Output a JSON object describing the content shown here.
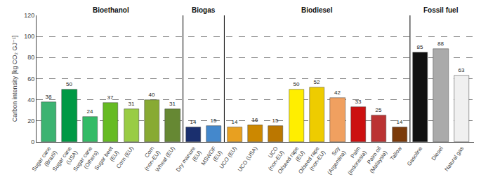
{
  "chart_data": {
    "type": "bar",
    "ylabel": "Carbon intensity [kg CO₂ GJ⁻¹]",
    "categories": [
      "Sugar cane\n(Brazil)",
      "Sugar cane\n(USA)",
      "Sugar cane\n(Others)",
      "Sugar beet\n(EU)",
      "Corn (EU)",
      "Corn\n(non-EU)",
      "Wheat (EU)",
      "Dry manure\n(EU)",
      "MSWOF\n(EU)",
      "UCO (EU)",
      "UCO (USA)",
      "UCO\n(non-EU)",
      "Oilseed rape\n(EU)",
      "Oilseed rape\n(non-EU)",
      "Soy\n(Argentina)",
      "Palm\n(Indonesia)",
      "Palm oil\n(Malaysia)",
      "Tallow",
      "Gasoline",
      "Diesel",
      "Natural gas"
    ],
    "values": [
      38,
      50,
      24,
      37,
      31,
      40,
      31,
      14,
      15,
      14,
      16,
      15,
      50,
      52,
      42,
      33,
      25,
      14,
      85,
      88,
      63
    ],
    "colors": [
      "#3cb371",
      "#009944",
      "#33bb66",
      "#66bb22",
      "#99cc44",
      "#88aa33",
      "#668833",
      "#1a2f6e",
      "#4488cc",
      "#e8a020",
      "#cc8800",
      "#bb7700",
      "#ffee00",
      "#eecc00",
      "#f0a060",
      "#cc1111",
      "#bb3333",
      "#7b3a0a",
      "#111111",
      "#aaaaaa",
      "#f0f0f0"
    ],
    "annotations": [
      {
        "text": "Bioethanol",
        "from": 0,
        "to": 6
      },
      {
        "text": "Biogas",
        "from": 7,
        "to": 8
      },
      {
        "text": "Biodiesel",
        "from": 9,
        "to": 17
      },
      {
        "text": "Fossil fuel",
        "from": 18,
        "to": 20
      }
    ],
    "ylim": [
      0,
      120
    ],
    "yticks": [
      0,
      20,
      40,
      60,
      80,
      100,
      120
    ],
    "grid": true,
    "data_labels": true
  }
}
